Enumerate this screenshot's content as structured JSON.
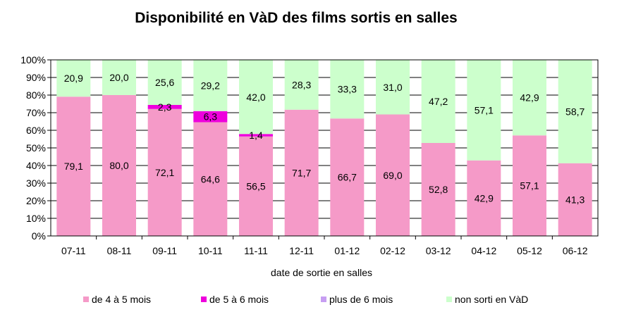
{
  "chart_data": {
    "type": "bar",
    "stacked": true,
    "percent_stacked": true,
    "title": "Disponibilité en VàD des films sortis en salles",
    "xlabel": "date de sortie en salles",
    "ylabel": "",
    "ylim": [
      0,
      100
    ],
    "yticks": [
      "0%",
      "10%",
      "20%",
      "30%",
      "40%",
      "50%",
      "60%",
      "70%",
      "80%",
      "90%",
      "100%"
    ],
    "categories": [
      "07-11",
      "08-11",
      "09-11",
      "10-11",
      "11-11",
      "12-11",
      "01-12",
      "02-12",
      "03-12",
      "04-12",
      "05-12",
      "06-12"
    ],
    "series": [
      {
        "name": "de 4 à 5 mois",
        "color": "#f59ac8",
        "values": [
          79.1,
          80.0,
          72.1,
          64.6,
          56.5,
          71.7,
          66.7,
          69.0,
          52.8,
          42.9,
          57.1,
          41.3
        ],
        "labels": [
          "79,1",
          "80,0",
          "72,1",
          "64,6",
          "56,5",
          "71,7",
          "66,7",
          "69,0",
          "52,8",
          "42,9",
          "57,1",
          "41,3"
        ]
      },
      {
        "name": "de 5 à 6 mois",
        "color": "#ee00dd",
        "values": [
          0,
          0,
          2.3,
          6.3,
          1.4,
          0,
          0,
          0,
          0,
          0,
          0,
          0
        ],
        "labels": [
          "",
          "",
          "2,3",
          "6,3",
          "1,4",
          "",
          "",
          "",
          "",
          "",
          "",
          ""
        ]
      },
      {
        "name": "plus de 6 mois",
        "color": "#c79ef2",
        "values": [
          0,
          0,
          0,
          0,
          0,
          0,
          0,
          0,
          0,
          0,
          0,
          0
        ],
        "labels": [
          "",
          "",
          "",
          "",
          "",
          "",
          "",
          "",
          "",
          "",
          "",
          ""
        ]
      },
      {
        "name": "non sorti en VàD",
        "color": "#ccffcc",
        "values": [
          20.9,
          20.0,
          25.6,
          29.2,
          42.0,
          28.3,
          33.3,
          31.0,
          47.2,
          57.1,
          42.9,
          58.7
        ],
        "labels": [
          "20,9",
          "20,0",
          "25,6",
          "29,2",
          "42,0",
          "28,3",
          "33,3",
          "31,0",
          "47,2",
          "57,1",
          "42,9",
          "58,7"
        ]
      }
    ],
    "grid": true,
    "legend_position": "bottom"
  }
}
